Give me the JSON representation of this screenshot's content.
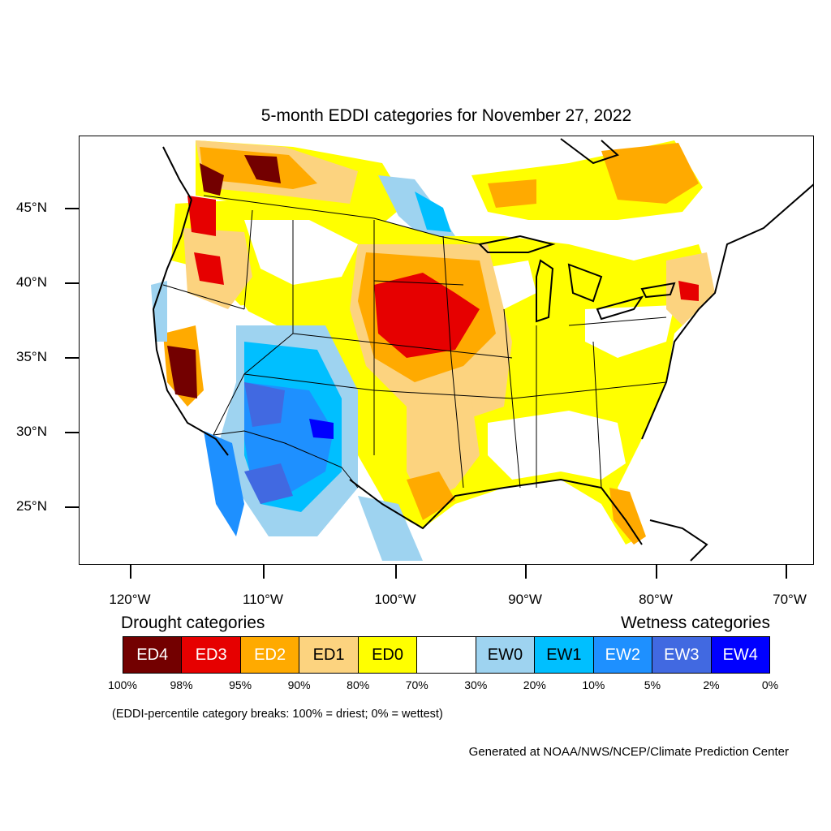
{
  "title": "5-month EDDI categories for November 27, 2022",
  "lat_labels": [
    "45°N",
    "40°N",
    "35°N",
    "30°N",
    "25°N"
  ],
  "lon_labels": [
    "120°W",
    "110°W",
    "100°W",
    "90°W",
    "80°W",
    "70°W"
  ],
  "legend": {
    "drought_title": "Drought categories",
    "wetness_title": "Wetness categories",
    "categories": [
      {
        "label": "ED4",
        "color": "#730000",
        "text_color": "#ffffff"
      },
      {
        "label": "ED3",
        "color": "#e60000",
        "text_color": "#ffffff"
      },
      {
        "label": "ED2",
        "color": "#ffaa00",
        "text_color": "#ffffff"
      },
      {
        "label": "ED1",
        "color": "#fcd37f",
        "text_color": "#000000"
      },
      {
        "label": "ED0",
        "color": "#ffff00",
        "text_color": "#000000"
      },
      {
        "label": "",
        "color": "#ffffff",
        "text_color": "#000000"
      },
      {
        "label": "EW0",
        "color": "#9ed3f0",
        "text_color": "#000000"
      },
      {
        "label": "EW1",
        "color": "#00bfff",
        "text_color": "#000000"
      },
      {
        "label": "EW2",
        "color": "#1e90ff",
        "text_color": "#ffffff"
      },
      {
        "label": "EW3",
        "color": "#4169e1",
        "text_color": "#ffffff"
      },
      {
        "label": "EW4",
        "color": "#0000ff",
        "text_color": "#ffffff"
      }
    ],
    "breaks": [
      "100%",
      "98%",
      "95%",
      "90%",
      "80%",
      "70%",
      "30%",
      "20%",
      "10%",
      "5%",
      "2%",
      "0%"
    ]
  },
  "break_note": "(EDDI-percentile category breaks: 100% = driest; 0% = wettest)",
  "credit": "Generated at NOAA/NWS/NCEP/Climate Prediction Center"
}
